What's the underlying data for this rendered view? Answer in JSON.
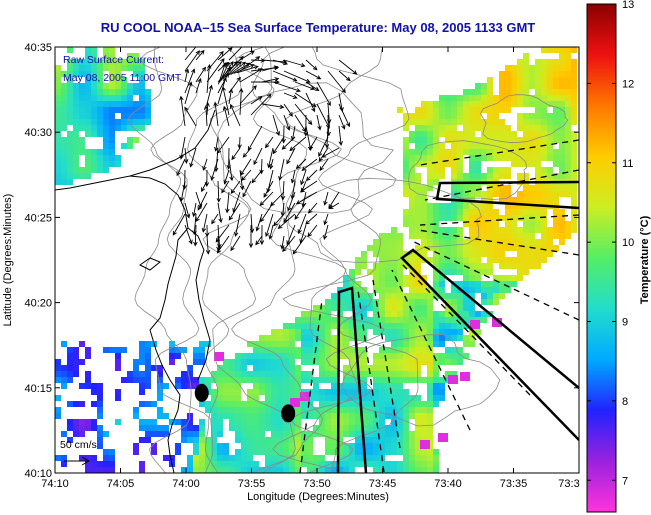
{
  "chart_data": {
    "type": "heatmap",
    "title": "RU COOL  NOAA–15  Sea Surface Temperature:  May 08, 2005 1133 GMT",
    "xlabel": "Longitude (Degrees:Minutes)",
    "ylabel": "Latitude (Degrees:Minutes)",
    "x_ticks": [
      "74:10",
      "74:05",
      "74:00",
      "73:55",
      "73:50",
      "73:45",
      "73:40",
      "73:35",
      "73:3"
    ],
    "y_ticks": [
      "40:10",
      "40:15",
      "40:20",
      "40:25",
      "40:30",
      "40:35"
    ],
    "xlim": [
      -74.1667,
      -73.5
    ],
    "ylim": [
      40.1667,
      40.5833
    ],
    "colorbar": {
      "label": "Temperature (°C)",
      "range": [
        6.6,
        13
      ],
      "ticks": [
        "7",
        "8",
        "9",
        "10",
        "11",
        "12",
        "13"
      ],
      "colors": [
        "#ff33dd",
        "#9a22dd",
        "#2222ff",
        "#00aaff",
        "#22ddcc",
        "#55ee66",
        "#ccee22",
        "#ffcc00",
        "#ff7700",
        "#ee1111",
        "#8b0000"
      ]
    },
    "annotations": {
      "current_label": "Raw Surface Current:",
      "current_time": "May 08, 2005 11:00 GMT",
      "scale_label": "50 cm/s"
    },
    "markers": [
      {
        "name": "marker-1",
        "lon": -73.98,
        "lat": 40.245
      },
      {
        "name": "marker-2",
        "lon": -73.87,
        "lat": 40.225
      }
    ]
  }
}
